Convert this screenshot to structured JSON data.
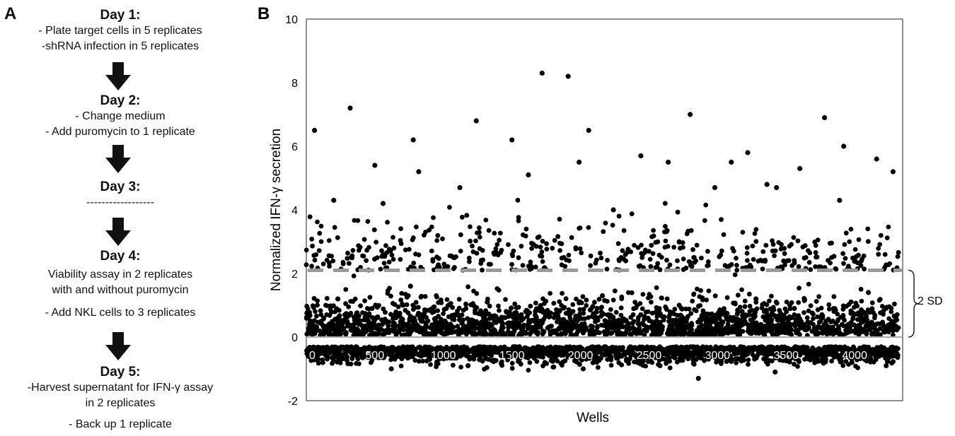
{
  "panel_a": {
    "letter": "A",
    "steps": [
      {
        "title": "Day 1:",
        "lines": [
          "- Plate target cells in 5 replicates",
          "-shRNA infection in 5 replicates"
        ]
      },
      {
        "title": "Day 2:",
        "lines": [
          "- Change medium",
          "- Add puromycin to 1 replicate"
        ]
      },
      {
        "title": "Day 3:",
        "lines": [
          "------------------"
        ]
      },
      {
        "title": "Day 4:",
        "lines": [
          "Viability assay in 2 replicates",
          "with and without puromycin",
          "",
          "- Add NKL cells to 3 replicates"
        ]
      },
      {
        "title": "Day 5:",
        "lines": [
          "-Harvest supernatant for IFN-γ assay",
          "in 2 replicates",
          "",
          "- Back up 1 replicate"
        ]
      }
    ]
  },
  "colors": {
    "points": "#000000",
    "threshold": "#999999",
    "zero_line": "#aaaaaa"
  },
  "chart_data": {
    "panel_letter": "B",
    "type": "scatter",
    "xlabel": "Wells",
    "ylabel": "Normalized IFN-γ secretion",
    "xlim": [
      0,
      4350
    ],
    "ylim": [
      -2,
      10
    ],
    "yticks": [
      "-2",
      "0",
      "2",
      "4",
      "6",
      "8",
      "10"
    ],
    "xticks": [
      "0",
      "500",
      "1000",
      "1500",
      "2000",
      "2500",
      "3000",
      "3500",
      "4000"
    ],
    "grid": false,
    "threshold": {
      "y": 2.1,
      "style": "dashed",
      "annotation": "2 SD"
    },
    "series": [
      {
        "x": [
          30,
          120,
          230,
          350,
          480,
          620,
          760,
          900,
          1040,
          1180,
          1320,
          1460,
          1600,
          1740,
          1880,
          2020,
          2160,
          2300,
          2440,
          2580,
          2720,
          2860,
          3000,
          3140,
          3280,
          3420,
          3560,
          3700,
          3840,
          3980,
          4100,
          4230,
          60,
          320,
          500,
          780,
          1240,
          1500,
          1720,
          1910,
          2060,
          2440,
          2800,
          2980,
          3220,
          3430,
          3600,
          3780,
          3920,
          4160,
          200,
          560,
          820,
          1120,
          1620,
          1990,
          2240,
          2640,
          3100,
          3360,
          3890,
          4280
        ],
        "y": [
          0.5,
          -0.8,
          1.2,
          -0.5,
          0.9,
          -1.0,
          1.6,
          -0.7,
          0.3,
          -0.9,
          1.1,
          -0.6,
          0.8,
          -0.8,
          0.4,
          -1.0,
          1.3,
          -0.6,
          0.7,
          -0.9,
          1.0,
          -1.3,
          0.6,
          -0.7,
          1.2,
          -1.1,
          0.9,
          -0.6,
          0.5,
          -0.8,
          1.4,
          -0.9,
          6.5,
          7.2,
          5.4,
          6.2,
          6.8,
          6.2,
          8.3,
          8.2,
          6.5,
          5.7,
          7.0,
          4.7,
          5.8,
          4.7,
          5.3,
          6.9,
          6.0,
          5.6,
          4.3,
          4.2,
          5.2,
          4.7,
          5.1,
          5.5,
          4.0,
          5.5,
          5.5,
          4.8,
          4.3,
          5.2
        ]
      }
    ]
  }
}
